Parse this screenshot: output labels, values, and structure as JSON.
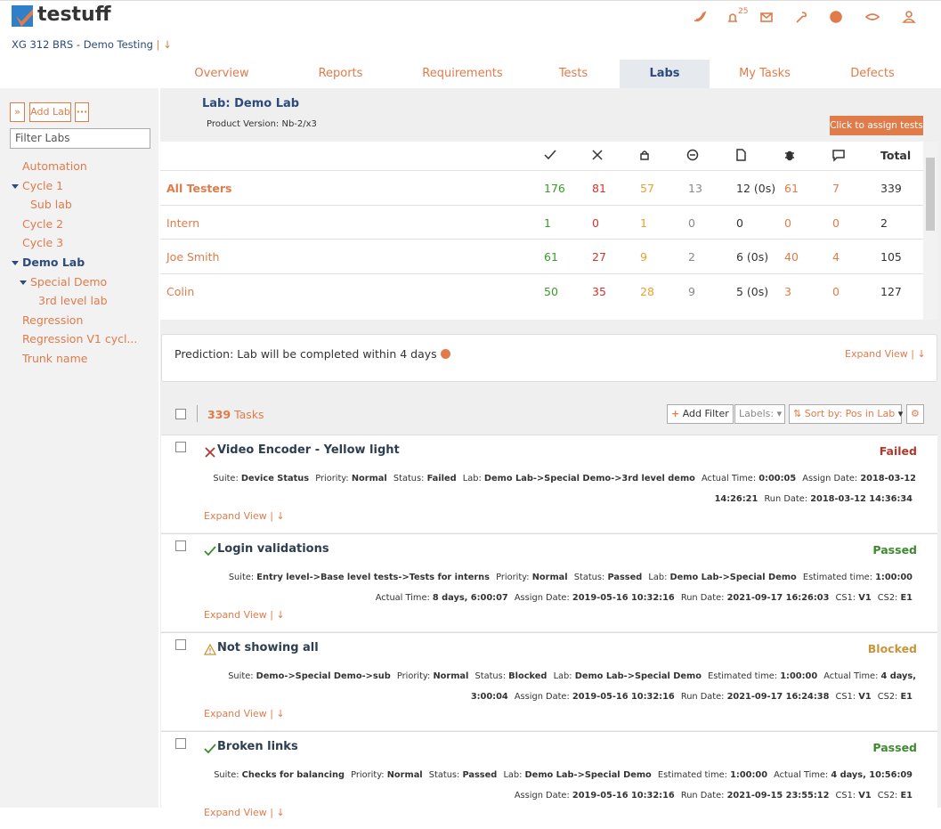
{
  "header": {
    "logo": "testuff",
    "project": "XG 312 BRS - Demo Testing",
    "notifications": "25"
  },
  "tabs": [
    "Overview",
    "Reports",
    "Requirements",
    "Tests",
    "Labs",
    "My Tasks",
    "Defects"
  ],
  "active_tab": 4,
  "sidebar": {
    "add_lab": "Add Lab",
    "filter_placeholder": "Filter Labs",
    "tree": [
      {
        "label": "Automation",
        "level": 0,
        "caret": false,
        "active": false
      },
      {
        "label": "Cycle 1",
        "level": 0,
        "caret": true,
        "active": false
      },
      {
        "label": "Sub lab",
        "level": 1,
        "caret": false,
        "active": false
      },
      {
        "label": "Cycle 2",
        "level": 0,
        "caret": false,
        "active": false
      },
      {
        "label": "Cycle 3",
        "level": 0,
        "caret": false,
        "active": false
      },
      {
        "label": "Demo Lab",
        "level": 0,
        "caret": true,
        "active": true
      },
      {
        "label": "Special Demo",
        "level": 1,
        "caret": true,
        "active": false
      },
      {
        "label": "3rd level lab",
        "level": 2,
        "caret": false,
        "active": false
      },
      {
        "label": "Regression",
        "level": 0,
        "caret": false,
        "active": false
      },
      {
        "label": "Regression V1 cycl...",
        "level": 0,
        "caret": false,
        "active": false
      },
      {
        "label": "Trunk name",
        "level": 0,
        "caret": false,
        "active": false
      }
    ]
  },
  "lab": {
    "title": "Lab: Demo Lab",
    "product_version": "Product Version: Nb-2/x3",
    "assign_button": "Click to assign tests"
  },
  "stats": {
    "total_header": "Total",
    "rows": [
      {
        "name": "All Testers",
        "cells": [
          176,
          81,
          57,
          13,
          "12 (0s)",
          61,
          7,
          339
        ]
      },
      {
        "name": "Intern",
        "cells": [
          1,
          0,
          1,
          0,
          0,
          0,
          0,
          2
        ]
      },
      {
        "name": "Joe Smith",
        "cells": [
          61,
          27,
          9,
          2,
          "6 (0s)",
          40,
          4,
          105
        ]
      },
      {
        "name": "Colin",
        "cells": [
          50,
          35,
          28,
          9,
          "5 (0s)",
          3,
          0,
          127
        ]
      }
    ]
  },
  "prediction": "Prediction: Lab will be completed within 4 days",
  "expand_view": "Expand View",
  "tasks_bar": {
    "count": "339",
    "label": "Tasks",
    "add_filter": "Add Filter",
    "labels": "Labels:",
    "sort": "Sort by: Pos in Lab"
  },
  "tasks": [
    {
      "title": "Video Encoder - Yellow light",
      "status": "Failed",
      "status_color": "#b0392c",
      "status_icon": "x",
      "fields": [
        {
          "label": "Suite:",
          "value": "Device Status"
        },
        {
          "label": "Priority:",
          "value": "Normal"
        },
        {
          "label": "Status:",
          "value": "Failed"
        },
        {
          "label": "Lab:",
          "value": "Demo Lab->Special Demo->3rd level demo"
        },
        {
          "label": "Actual Time:",
          "value": "0:00:05"
        },
        {
          "label": "Assign Date:",
          "value": "2018-03-12 14:26:21"
        },
        {
          "label": "Run Date:",
          "value": "2018-03-12 14:36:34"
        }
      ]
    },
    {
      "title": "Login validations",
      "status": "Passed",
      "status_color": "#3d8b2e",
      "status_icon": "check",
      "fields": [
        {
          "label": "Suite:",
          "value": "Entry level->Base level tests->Tests for interns"
        },
        {
          "label": "Priority:",
          "value": "Normal"
        },
        {
          "label": "Status:",
          "value": "Passed"
        },
        {
          "label": "Lab:",
          "value": "Demo Lab->Special Demo"
        },
        {
          "label": "Estimated time:",
          "value": "1:00:00"
        },
        {
          "label": "Actual Time:",
          "value": "8 days, 6:00:07"
        },
        {
          "label": "Assign Date:",
          "value": "2019-05-16 10:32:16"
        },
        {
          "label": "Run Date:",
          "value": "2021-09-17 16:26:03"
        },
        {
          "label": "CS1:",
          "value": "V1"
        },
        {
          "label": "CS2:",
          "value": "E1"
        }
      ]
    },
    {
      "title": "Not showing all",
      "status": "Blocked",
      "status_color": "#c8963a",
      "status_icon": "warning",
      "fields": [
        {
          "label": "Suite:",
          "value": "Demo->Special Demo->sub"
        },
        {
          "label": "Priority:",
          "value": "Normal"
        },
        {
          "label": "Status:",
          "value": "Blocked"
        },
        {
          "label": "Lab:",
          "value": "Demo Lab->Special Demo"
        },
        {
          "label": "Estimated time:",
          "value": "1:00:00"
        },
        {
          "label": "Actual Time:",
          "value": "4 days, 3:00:04"
        },
        {
          "label": "Assign Date:",
          "value": "2019-05-16 10:32:16"
        },
        {
          "label": "Run Date:",
          "value": "2021-09-17 16:24:38"
        },
        {
          "label": "CS1:",
          "value": "V1"
        },
        {
          "label": "CS2:",
          "value": "E1"
        }
      ]
    },
    {
      "title": "Broken links",
      "status": "Passed",
      "status_color": "#3d8b2e",
      "status_icon": "check",
      "fields": [
        {
          "label": "Suite:",
          "value": "Checks for balancing"
        },
        {
          "label": "Priority:",
          "value": "Normal"
        },
        {
          "label": "Status:",
          "value": "Passed"
        },
        {
          "label": "Lab:",
          "value": "Demo Lab->Special Demo"
        },
        {
          "label": "Estimated time:",
          "value": "1:00:00"
        },
        {
          "label": "Actual Time:",
          "value": "4 days, 10:56:09"
        },
        {
          "label": "Assign Date:",
          "value": "2019-05-16 10:32:16"
        },
        {
          "label": "Run Date:",
          "value": "2021-09-15 23:55:12"
        },
        {
          "label": "CS1:",
          "value": "V1"
        },
        {
          "label": "CS2:",
          "value": "E1"
        }
      ]
    }
  ]
}
